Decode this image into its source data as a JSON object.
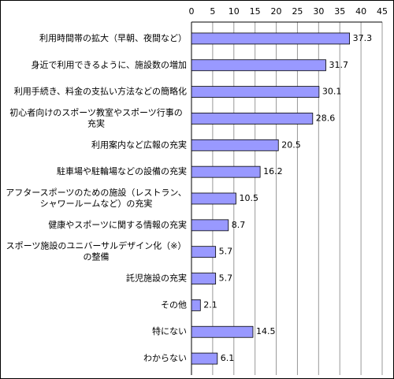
{
  "chart_data": {
    "type": "bar",
    "orientation": "horizontal",
    "categories": [
      "利用時間帯の拡大（早朝、夜間など）",
      "身近で利用できるように、施設数の増加",
      "利用手続き、料金の支払い方法などの簡略化",
      "初心者向けのスポーツ教室やスポーツ行事の\n充実",
      "利用案内など広報の充実",
      "駐車場や駐輪場などの設備の充実",
      "アフタースポーツのための施設（レストラン、\nシャワールームなど）の充実",
      "健康やスポーツに関する情報の充実",
      "スポーツ施設のユニバーサルデザイン化（※）\nの整備",
      "託児施設の充実",
      "その他",
      "特にない",
      "わからない"
    ],
    "values": [
      37.3,
      31.7,
      30.1,
      28.6,
      20.5,
      16.2,
      10.5,
      8.7,
      5.7,
      5.7,
      2.1,
      14.5,
      6.1
    ],
    "color": "#9999ff",
    "xlim": [
      0,
      45
    ],
    "xticks": [
      0,
      5,
      10,
      15,
      20,
      25,
      30,
      35,
      40,
      45
    ],
    "grid": true
  }
}
